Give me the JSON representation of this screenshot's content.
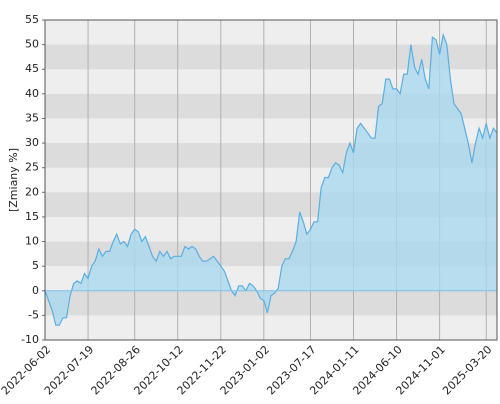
{
  "chart_data": {
    "type": "area",
    "y_label": "[Zmiany %]",
    "color": "#5aaee0",
    "fill": "#aad8ee",
    "grid": true,
    "values": [
      0,
      -2,
      -4,
      -7,
      -7,
      -5.5,
      -5.5,
      -1,
      1.5,
      2,
      1.5,
      3.5,
      2.5,
      5,
      6,
      8.5,
      7,
      8,
      8,
      10,
      11.5,
      9.5,
      10,
      9,
      11.5,
      12.5,
      12,
      10,
      11,
      9,
      7,
      6,
      8,
      7,
      8,
      6.5,
      7,
      7,
      7,
      9,
      8.5,
      9,
      8.5,
      7,
      6,
      6,
      6.5,
      7,
      6,
      5,
      4,
      2,
      0,
      -1,
      1,
      1,
      0,
      1.5,
      1,
      0,
      -1.5,
      -2,
      -4.5,
      -1,
      -0.5,
      0.5,
      5,
      6.5,
      6.5,
      8,
      10,
      16,
      14,
      11.5,
      12.5,
      14,
      14,
      21,
      23,
      23,
      25,
      26,
      25.5,
      24,
      28,
      30,
      28,
      33,
      34,
      33,
      32,
      31,
      31,
      37.5,
      38,
      43,
      43,
      41,
      41,
      40,
      44,
      44,
      50,
      45.5,
      44,
      47,
      43,
      41,
      51.5,
      51,
      48,
      52,
      50,
      43,
      38,
      37,
      36,
      33,
      30,
      26,
      30,
      33,
      31,
      34,
      31,
      33,
      32
    ],
    "xlim": [
      0,
      126
    ],
    "xticks": [
      {
        "value": 0,
        "label": "2022-06-02"
      },
      {
        "value": 12,
        "label": "2022-07-19"
      },
      {
        "value": 25,
        "label": "2022-08-26"
      },
      {
        "value": 37,
        "label": "2022-10-12"
      },
      {
        "value": 49,
        "label": "2022-11-22"
      },
      {
        "value": 61,
        "label": "2023-01-02"
      },
      {
        "value": 74,
        "label": "2023-07-17"
      },
      {
        "value": 86,
        "label": "2024-01-11"
      },
      {
        "value": 98,
        "label": "2024-06-10"
      },
      {
        "value": 110,
        "label": "2024-11-01"
      },
      {
        "value": 123,
        "label": "2025-03-20"
      }
    ],
    "ylim": [
      -10,
      55
    ],
    "yticks": [
      -10,
      -5,
      0,
      5,
      10,
      15,
      20,
      25,
      30,
      35,
      40,
      45,
      50,
      55
    ]
  }
}
